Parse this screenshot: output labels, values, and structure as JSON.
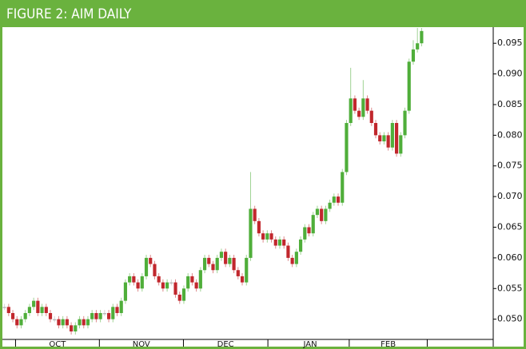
{
  "chart_data": {
    "type": "candlestick",
    "title": "FIGURE 2: AIM DAILY",
    "open": [
      0.052,
      0.052,
      0.051,
      0.05,
      0.049,
      0.05,
      0.051,
      0.052,
      0.053,
      0.051,
      0.052,
      0.051,
      0.05,
      0.05,
      0.049,
      0.05,
      0.049,
      0.048,
      0.049,
      0.05,
      0.049,
      0.05,
      0.051,
      0.05,
      0.051,
      0.051,
      0.05,
      0.052,
      0.051,
      0.053,
      0.056,
      0.057,
      0.056,
      0.055,
      0.057,
      0.06,
      0.059,
      0.057,
      0.056,
      0.055,
      0.056,
      0.056,
      0.054,
      0.053,
      0.055,
      0.057,
      0.056,
      0.055,
      0.058,
      0.06,
      0.059,
      0.058,
      0.06,
      0.061,
      0.059,
      0.06,
      0.058,
      0.057,
      0.056,
      0.06,
      0.068,
      0.066,
      0.064,
      0.063,
      0.064,
      0.063,
      0.062,
      0.063,
      0.062,
      0.06,
      0.059,
      0.061,
      0.063,
      0.065,
      0.064,
      0.067,
      0.068,
      0.066,
      0.068,
      0.069,
      0.07,
      0.069,
      0.074,
      0.082,
      0.086,
      0.084,
      0.083,
      0.086,
      0.084,
      0.082,
      0.08,
      0.079,
      0.08,
      0.078,
      0.082,
      0.077,
      0.08,
      0.084,
      0.092,
      0.094,
      0.095
    ],
    "high": [
      0.0525,
      0.0525,
      0.0515,
      0.0505,
      0.0505,
      0.0515,
      0.0525,
      0.0535,
      0.0535,
      0.0525,
      0.0525,
      0.0515,
      0.0505,
      0.0505,
      0.0505,
      0.0505,
      0.0495,
      0.0495,
      0.0505,
      0.0505,
      0.0505,
      0.0515,
      0.0515,
      0.0515,
      0.0515,
      0.0515,
      0.0525,
      0.0525,
      0.0535,
      0.0565,
      0.0575,
      0.0575,
      0.0565,
      0.0575,
      0.0605,
      0.0605,
      0.0595,
      0.0575,
      0.0565,
      0.0565,
      0.0565,
      0.0565,
      0.0545,
      0.0555,
      0.0575,
      0.0575,
      0.0565,
      0.0585,
      0.0605,
      0.0605,
      0.0595,
      0.0605,
      0.0615,
      0.0615,
      0.0605,
      0.0605,
      0.0585,
      0.0575,
      0.0605,
      0.074,
      0.0685,
      0.0665,
      0.0645,
      0.0645,
      0.0645,
      0.0635,
      0.0635,
      0.0635,
      0.0625,
      0.0605,
      0.0615,
      0.0635,
      0.0655,
      0.0655,
      0.0675,
      0.0685,
      0.0685,
      0.0685,
      0.0695,
      0.0705,
      0.0705,
      0.0745,
      0.0825,
      0.091,
      0.0865,
      0.0845,
      0.089,
      0.0865,
      0.0845,
      0.0825,
      0.0805,
      0.0805,
      0.0805,
      0.0825,
      0.0825,
      0.0805,
      0.0845,
      0.0925,
      0.0955,
      0.0975,
      0.0975
    ],
    "low": [
      0.0515,
      0.0505,
      0.0495,
      0.0485,
      0.0485,
      0.0495,
      0.0505,
      0.0515,
      0.0505,
      0.0505,
      0.0505,
      0.0495,
      0.0495,
      0.0485,
      0.0485,
      0.0485,
      0.0475,
      0.0475,
      0.0485,
      0.0485,
      0.0485,
      0.0495,
      0.0495,
      0.0495,
      0.0505,
      0.0495,
      0.0495,
      0.0505,
      0.0505,
      0.0525,
      0.0555,
      0.0555,
      0.0545,
      0.0545,
      0.0565,
      0.0585,
      0.0565,
      0.0555,
      0.0545,
      0.0545,
      0.0555,
      0.0535,
      0.0525,
      0.0525,
      0.0545,
      0.0555,
      0.0545,
      0.0545,
      0.0575,
      0.0585,
      0.0575,
      0.0575,
      0.0595,
      0.0585,
      0.0585,
      0.0575,
      0.0565,
      0.0555,
      0.0555,
      0.0595,
      0.0655,
      0.0635,
      0.0625,
      0.0625,
      0.0625,
      0.0615,
      0.0615,
      0.0615,
      0.0595,
      0.0585,
      0.0585,
      0.0605,
      0.0625,
      0.0635,
      0.0635,
      0.0665,
      0.0655,
      0.0655,
      0.0675,
      0.0685,
      0.0685,
      0.0685,
      0.0735,
      0.0815,
      0.0835,
      0.0825,
      0.0825,
      0.0835,
      0.0815,
      0.0795,
      0.0785,
      0.0785,
      0.0775,
      0.0775,
      0.0765,
      0.0765,
      0.0795,
      0.0835,
      0.0915,
      0.0935,
      0.0945
    ],
    "close": [
      0.052,
      0.051,
      0.05,
      0.049,
      0.05,
      0.051,
      0.052,
      0.053,
      0.051,
      0.052,
      0.051,
      0.05,
      0.05,
      0.049,
      0.05,
      0.049,
      0.048,
      0.049,
      0.05,
      0.049,
      0.05,
      0.051,
      0.05,
      0.051,
      0.051,
      0.05,
      0.052,
      0.051,
      0.053,
      0.056,
      0.057,
      0.056,
      0.055,
      0.057,
      0.06,
      0.059,
      0.057,
      0.056,
      0.055,
      0.056,
      0.056,
      0.054,
      0.053,
      0.055,
      0.057,
      0.056,
      0.055,
      0.058,
      0.06,
      0.059,
      0.058,
      0.06,
      0.061,
      0.059,
      0.06,
      0.058,
      0.057,
      0.056,
      0.06,
      0.068,
      0.066,
      0.064,
      0.063,
      0.064,
      0.063,
      0.062,
      0.063,
      0.062,
      0.06,
      0.059,
      0.061,
      0.063,
      0.065,
      0.064,
      0.067,
      0.068,
      0.066,
      0.068,
      0.069,
      0.07,
      0.069,
      0.074,
      0.082,
      0.086,
      0.084,
      0.083,
      0.086,
      0.084,
      0.082,
      0.08,
      0.079,
      0.08,
      0.078,
      0.082,
      0.077,
      0.08,
      0.084,
      0.092,
      0.094,
      0.095,
      0.097
    ],
    "up_color": "#4fae3a",
    "down_color": "#c1272d",
    "flat_color": "#b8b8b8",
    "xlim": [
      -0.5,
      100.5
    ],
    "xticks": [
      {
        "value": 12.7,
        "label": "OCT"
      },
      {
        "value": 32.8,
        "label": "NOV"
      },
      {
        "value": 53,
        "label": "DEC"
      },
      {
        "value": 73.3,
        "label": "JAN"
      },
      {
        "value": 92,
        "label": "FEB"
      }
    ],
    "ylim": [
      0.0467,
      0.0975
    ],
    "yticks": [
      {
        "value": 0.05,
        "label": "0.050"
      },
      {
        "value": 0.055,
        "label": "0.055"
      },
      {
        "value": 0.06,
        "label": "0.060"
      },
      {
        "value": 0.065,
        "label": "0.065"
      },
      {
        "value": 0.07,
        "label": "0.070"
      },
      {
        "value": 0.075,
        "label": "0.075"
      },
      {
        "value": 0.08,
        "label": "0.080"
      },
      {
        "value": 0.085,
        "label": "0.085"
      },
      {
        "value": 0.09,
        "label": "0.090"
      },
      {
        "value": 0.095,
        "label": "0.095"
      }
    ],
    "grid": false
  }
}
